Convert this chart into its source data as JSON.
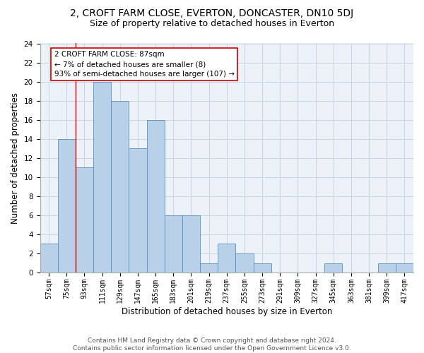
{
  "title1": "2, CROFT FARM CLOSE, EVERTON, DONCASTER, DN10 5DJ",
  "title2": "Size of property relative to detached houses in Everton",
  "xlabel": "Distribution of detached houses by size in Everton",
  "ylabel": "Number of detached properties",
  "categories": [
    "57sqm",
    "75sqm",
    "93sqm",
    "111sqm",
    "129sqm",
    "147sqm",
    "165sqm",
    "183sqm",
    "201sqm",
    "219sqm",
    "237sqm",
    "255sqm",
    "273sqm",
    "291sqm",
    "309sqm",
    "327sqm",
    "345sqm",
    "363sqm",
    "381sqm",
    "399sqm",
    "417sqm"
  ],
  "values": [
    3,
    14,
    11,
    20,
    18,
    13,
    16,
    6,
    6,
    1,
    3,
    2,
    1,
    0,
    0,
    0,
    1,
    0,
    0,
    1,
    1
  ],
  "bar_color": "#b8d0e8",
  "bar_edge_color": "#5a8fc0",
  "annotation_text": "2 CROFT FARM CLOSE: 87sqm\n← 7% of detached houses are smaller (8)\n93% of semi-detached houses are larger (107) →",
  "annotation_box_color": "#ffffff",
  "annotation_box_edge_color": "#cc0000",
  "red_line_color": "#cc0000",
  "ylim": [
    0,
    24
  ],
  "yticks": [
    0,
    2,
    4,
    6,
    8,
    10,
    12,
    14,
    16,
    18,
    20,
    22,
    24
  ],
  "footer_text": "Contains HM Land Registry data © Crown copyright and database right 2024.\nContains public sector information licensed under the Open Government Licence v3.0.",
  "title1_fontsize": 10,
  "title2_fontsize": 9,
  "xlabel_fontsize": 8.5,
  "ylabel_fontsize": 8.5,
  "annotation_fontsize": 7.5,
  "footer_fontsize": 6.5,
  "bg_color": "#ffffff",
  "grid_color": "#c8d4e8",
  "axes_bg_color": "#edf1f8"
}
